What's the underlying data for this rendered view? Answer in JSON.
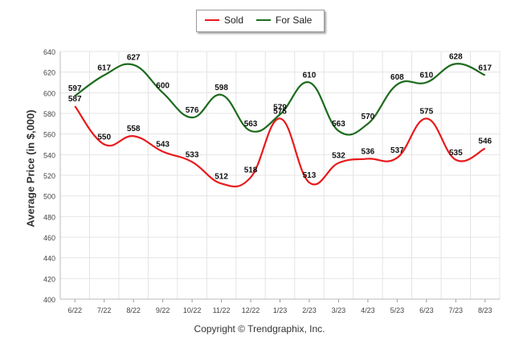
{
  "chart_data": {
    "type": "line",
    "categories": [
      "6/22",
      "7/22",
      "8/22",
      "9/22",
      "10/22",
      "11/22",
      "12/22",
      "1/23",
      "2/23",
      "3/23",
      "4/23",
      "5/23",
      "6/23",
      "7/23",
      "8/23"
    ],
    "series": [
      {
        "name": "Sold",
        "color": "#e8191c",
        "values": [
          587,
          550,
          558,
          543,
          533,
          512,
          518,
          575,
          513,
          532,
          536,
          537,
          575,
          535,
          546
        ]
      },
      {
        "name": "For Sale",
        "color": "#1d6b1d",
        "values": [
          597,
          617,
          627,
          600,
          576,
          598,
          563,
          579,
          610,
          563,
          570,
          608,
          610,
          628,
          617
        ]
      }
    ],
    "ylabel": "Average Price (in $,000)",
    "xlabel": "",
    "ylim": [
      400,
      640
    ],
    "yticks": [
      400,
      420,
      440,
      460,
      480,
      500,
      520,
      540,
      560,
      580,
      600,
      620,
      640
    ],
    "grid": true,
    "legend_position": "top-center",
    "credit": "Copyright © Trendgraphix, Inc."
  }
}
